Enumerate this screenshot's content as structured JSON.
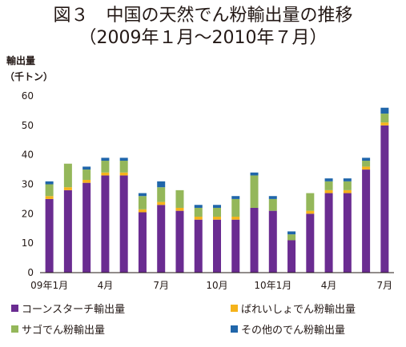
{
  "figure": {
    "title_line1": "図３　中国の天然でん粉輸出量の推移",
    "title_line2": "（2009年１月～2010年７月）"
  },
  "chart_data": {
    "type": "bar",
    "stacked": true,
    "ylabel_line1": "輸出量",
    "ylabel_line2": "（千トン）",
    "ylim": [
      0,
      60
    ],
    "yticks": [
      0,
      10,
      20,
      30,
      40,
      50,
      60
    ],
    "grid": false,
    "legend_position": "bottom",
    "categories": [
      "2009-01",
      "2009-02",
      "2009-03",
      "2009-04",
      "2009-05",
      "2009-06",
      "2009-07",
      "2009-08",
      "2009-09",
      "2009-10",
      "2009-11",
      "2009-12",
      "2010-01",
      "2010-02",
      "2010-03",
      "2010-04",
      "2010-05",
      "2010-06",
      "2010-07"
    ],
    "tick_labels": [
      {
        "index": 0,
        "label": "09年1月"
      },
      {
        "index": 3,
        "label": "4月"
      },
      {
        "index": 6,
        "label": "7月"
      },
      {
        "index": 9,
        "label": "10月"
      },
      {
        "index": 12,
        "label": "10年1月"
      },
      {
        "index": 15,
        "label": "4月"
      },
      {
        "index": 18,
        "label": "7月"
      }
    ],
    "series": [
      {
        "name": "コーンスターチ輸出量",
        "color": "#6a2c91",
        "values": [
          25,
          28,
          30.5,
          33,
          33,
          20.5,
          23,
          21,
          18,
          18,
          18,
          22,
          21,
          11,
          20,
          27,
          27,
          35,
          50
        ]
      },
      {
        "name": "ばれいしょでん粉輸出量",
        "color": "#f5b31b",
        "values": [
          1,
          1,
          1,
          1,
          1,
          1,
          1,
          1,
          1,
          1,
          1,
          0,
          0,
          0,
          1,
          1,
          1,
          1,
          1
        ]
      },
      {
        "name": "サゴでん粉輸出量",
        "color": "#94b75a",
        "values": [
          4,
          8,
          3.5,
          4,
          4,
          4.5,
          5,
          6,
          3,
          3,
          6,
          11,
          4,
          2,
          6,
          3,
          3,
          2,
          3
        ]
      },
      {
        "name": "その他のでん粉輸出量",
        "color": "#2066aa",
        "values": [
          1,
          0,
          1,
          1,
          1,
          1,
          2,
          0,
          1,
          1,
          1,
          1,
          1,
          1,
          0,
          1,
          1,
          1,
          2
        ]
      }
    ]
  }
}
